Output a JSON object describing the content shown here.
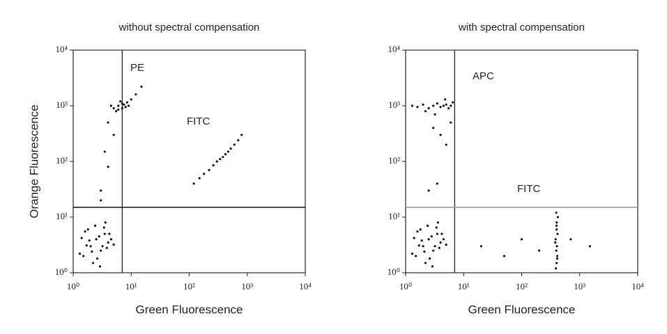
{
  "chart_data": [
    {
      "type": "scatter",
      "title": "without spectral compensation",
      "x_label": "Green Fluorescence",
      "y_label": "Orange Fluorescence",
      "log_x": true,
      "log_y": true,
      "xlim": [
        1,
        10000
      ],
      "ylim": [
        1,
        10000
      ],
      "xticks": [
        {
          "value": 1,
          "label": "10⁰"
        },
        {
          "value": 10,
          "label": "10¹"
        },
        {
          "value": 100,
          "label": "10²"
        },
        {
          "value": 1000,
          "label": "10³"
        },
        {
          "value": 10000,
          "label": "10⁴"
        }
      ],
      "yticks": [
        {
          "value": 1,
          "label": "10⁰"
        },
        {
          "value": 10,
          "label": "10¹"
        },
        {
          "value": 100,
          "label": "10²"
        },
        {
          "value": 1000,
          "label": "10³"
        },
        {
          "value": 10000,
          "label": "10⁴"
        }
      ],
      "color": "#111111",
      "gates": {
        "x": 7,
        "y": 15
      },
      "gate_colors": {
        "x": "#222222",
        "y": "#222222"
      },
      "annotations": [
        "PE",
        "FITC"
      ],
      "x": [
        1.5,
        2,
        2.5,
        3,
        3.5,
        4,
        1.8,
        2.2,
        2.8,
        3.2,
        4.5,
        1.3,
        1.6,
        2.4,
        3.8,
        5,
        2.6,
        1.9,
        3.4,
        2.1,
        1.4,
        4.2,
        2.9,
        3.6,
        1.7,
        5,
        6,
        7,
        8,
        5.5,
        6.5,
        7.5,
        9,
        6,
        7,
        8.5,
        10,
        4.5,
        12,
        15,
        3,
        4,
        3.5,
        5,
        4,
        3,
        120,
        180,
        220,
        260,
        300,
        340,
        380,
        420,
        470,
        520,
        600,
        700,
        800,
        150
      ],
      "y": [
        2,
        3,
        4,
        2.5,
        5,
        3.5,
        6,
        1.5,
        4.5,
        3,
        4,
        2.2,
        5.5,
        7,
        2.8,
        3.2,
        1.8,
        3.8,
        6.5,
        2.4,
        4.2,
        5,
        1.3,
        8,
        3.1,
        900,
        1000,
        1100,
        950,
        800,
        1200,
        1050,
        1000,
        850,
        900,
        1150,
        1300,
        1000,
        1600,
        2200,
        30,
        80,
        150,
        300,
        500,
        20,
        40,
        60,
        70,
        85,
        100,
        110,
        120,
        135,
        150,
        170,
        200,
        240,
        300,
        50
      ]
    },
    {
      "type": "scatter",
      "title": "with spectral compensation",
      "x_label": "Green Fluorescence",
      "log_x": true,
      "log_y": true,
      "xlim": [
        1,
        10000
      ],
      "ylim": [
        1,
        10000
      ],
      "xticks": [
        {
          "value": 1,
          "label": "10⁰"
        },
        {
          "value": 10,
          "label": "10¹"
        },
        {
          "value": 100,
          "label": "10²"
        },
        {
          "value": 1000,
          "label": "10³"
        },
        {
          "value": 10000,
          "label": "10⁴"
        }
      ],
      "yticks": [
        {
          "value": 1,
          "label": "10⁰"
        },
        {
          "value": 10,
          "label": "10¹"
        },
        {
          "value": 100,
          "label": "10²"
        },
        {
          "value": 1000,
          "label": "10³"
        },
        {
          "value": 10000,
          "label": "10⁴"
        }
      ],
      "color": "#111111",
      "gates": {
        "x": 7,
        "y": 15
      },
      "gate_colors": {
        "x": "#222222",
        "y": "#999999"
      },
      "annotations": [
        "APC",
        "FITC"
      ],
      "x": [
        1.5,
        2,
        2.5,
        3,
        3.5,
        4,
        1.8,
        2.2,
        2.8,
        3.2,
        4.5,
        1.3,
        1.6,
        2.4,
        3.8,
        5,
        2.6,
        1.9,
        3.4,
        2.1,
        1.4,
        4.2,
        2.9,
        3.6,
        1.7,
        1.3,
        1.6,
        2,
        2.5,
        3,
        3.5,
        4,
        4.5,
        5,
        5.5,
        6,
        6.5,
        2.2,
        3.2,
        4.8,
        3,
        4,
        5,
        2.5,
        6,
        3.5,
        390,
        400,
        410,
        395,
        405,
        385,
        415,
        400,
        398,
        402,
        420,
        380,
        410,
        395,
        20,
        50,
        100,
        200,
        700,
        1500
      ],
      "y": [
        2,
        3,
        4,
        2.5,
        5,
        3.5,
        6,
        1.5,
        4.5,
        3,
        4,
        2.2,
        5.5,
        7,
        2.8,
        3.2,
        1.8,
        3.8,
        6.5,
        2.4,
        4.2,
        5,
        1.3,
        8,
        3.1,
        1000,
        950,
        1050,
        900,
        1000,
        1100,
        950,
        1000,
        1050,
        900,
        1000,
        1150,
        800,
        700,
        1300,
        400,
        300,
        200,
        30,
        500,
        40,
        1.2,
        1.5,
        2,
        2.5,
        3,
        4,
        5,
        6,
        7,
        8,
        10,
        3.5,
        1.8,
        12,
        3,
        2,
        4,
        2.5,
        4,
        3
      ]
    }
  ]
}
